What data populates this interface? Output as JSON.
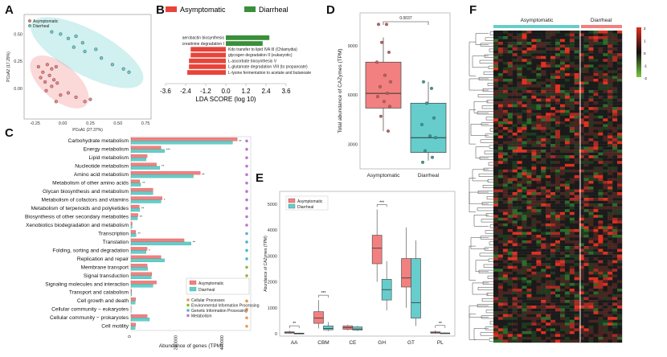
{
  "panels": {
    "A": {
      "label": "A",
      "xlabel": "PCoA1 (27.37%)",
      "ylabel": "PCoA2 (17.29%)",
      "xticks": [
        "-0.25",
        "0.00",
        "0.25",
        "0.50",
        "0.75"
      ],
      "yticks": [
        "0.50",
        "0.25",
        "0.00"
      ],
      "legend": [
        "Asymptomatic",
        "Diarrheal"
      ]
    },
    "B": {
      "label": "B",
      "legend": [
        "Asymptomatic",
        "Diarrheal"
      ],
      "xlabel": "LDA SCORE (log 10)",
      "xticks": [
        "-3.6",
        "-2.4",
        "-1.2",
        "0.0",
        "1.2",
        "2.4",
        "3.6"
      ]
    },
    "C": {
      "label": "C",
      "xlabel": "Abundance of genes (TPM)",
      "xticks": [
        "0",
        "200000",
        "400000"
      ],
      "legend": [
        "Asymptomatic",
        "Diarrheal"
      ],
      "class_legend": [
        "Cellular Processes",
        "Environmental Information Processing",
        "Genetic Information Processing",
        "Metabolism"
      ]
    },
    "D": {
      "label": "D",
      "ylabel": "Total abundance of CAZymes (TPM)",
      "yticks": [
        "9000",
        "6000",
        "3000"
      ],
      "categories": [
        "Asymptomatic",
        "Diarrheal"
      ],
      "pvalue": "0.0037"
    },
    "E": {
      "label": "E",
      "ylabel": "Abundance of CAZymes (TPM)",
      "yticks": [
        "0",
        "1000",
        "2000",
        "3000",
        "4000",
        "5000"
      ],
      "legend": [
        "Asymptomatic",
        "Diarrheal"
      ],
      "categories": [
        "AA",
        "CBM",
        "CE",
        "GH",
        "GT",
        "PL"
      ],
      "sig": [
        "**",
        "***",
        "",
        "***",
        "",
        "**"
      ]
    },
    "F": {
      "label": "F",
      "groups": [
        "Asymptomatic",
        "Diarrheal"
      ],
      "scale": [
        "2",
        "1",
        "0",
        "-1",
        "-2"
      ]
    }
  },
  "colors": {
    "asym": "#f28080",
    "diar": "#66cdcc",
    "asym_dark": "#e8443a",
    "diar_dark": "#3a8f3a"
  },
  "chart_data": [
    {
      "type": "scatter",
      "xlabel": "PCoA1 (27.37%)",
      "ylabel": "PCoA2 (17.29%)",
      "xlim": [
        -0.35,
        0.8
      ],
      "ylim": [
        -0.28,
        0.68
      ],
      "series": [
        {
          "name": "Asymptomatic",
          "points": [
            [
              -0.22,
              0.2
            ],
            [
              -0.18,
              0.15
            ],
            [
              -0.14,
              0.22
            ],
            [
              -0.1,
              0.18
            ],
            [
              -0.06,
              0.2
            ],
            [
              -0.12,
              0.12
            ],
            [
              -0.08,
              0.08
            ],
            [
              -0.16,
              0.06
            ],
            [
              -0.2,
              0.1
            ],
            [
              -0.1,
              0.02
            ],
            [
              -0.05,
              0.05
            ],
            [
              -0.15,
              -0.02
            ],
            [
              -0.02,
              -0.06
            ],
            [
              0.05,
              -0.04
            ],
            [
              0.12,
              -0.08
            ],
            [
              0.2,
              -0.12
            ],
            [
              0.25,
              -0.1
            ],
            [
              -0.06,
              -0.12
            ]
          ]
        },
        {
          "name": "Diarrheal",
          "points": [
            [
              -0.1,
              0.52
            ],
            [
              -0.02,
              0.5
            ],
            [
              0.05,
              0.46
            ],
            [
              0.12,
              0.48
            ],
            [
              0.18,
              0.42
            ],
            [
              0.1,
              0.38
            ],
            [
              0.2,
              0.34
            ],
            [
              0.3,
              0.36
            ],
            [
              0.35,
              0.28
            ],
            [
              0.45,
              0.22
            ],
            [
              0.55,
              0.18
            ],
            [
              0.6,
              0.15
            ]
          ]
        }
      ]
    },
    {
      "type": "bar",
      "title": "",
      "xlabel": "LDA SCORE (log 10)",
      "categories": [
        "aerobactin biosynthesis",
        "creatinine degradation I",
        "Kdo transfer to lipid IVA III (Chlamydia)",
        "glycogen degradation II (eukaryotic)",
        "L-ascorbate biosynthesis V",
        "L-glutamate degradation VIII (to propanoate)",
        "L-lysine fermentation to acetate and butanoate"
      ],
      "values": [
        2.6,
        2.2,
        -2.1,
        -2.1,
        -2.2,
        -2.2,
        -2.3
      ],
      "groups": [
        "Diarrheal",
        "Diarrheal",
        "Asymptomatic",
        "Asymptomatic",
        "Asymptomatic",
        "Asymptomatic",
        "Asymptomatic"
      ],
      "xlim": [
        -3.6,
        3.6
      ]
    },
    {
      "type": "bar",
      "xlabel": "Abundance of genes (TPM)",
      "categories": [
        "Carbohydrate metabolism",
        "Energy metabolism",
        "Lipid metabolism",
        "Nucleotide metabolism",
        "Amino acid metabolism",
        "Metabolism of other amino acids",
        "Glycan biosynthesis and metabolism",
        "Metabolism of cofactors and vitamins",
        "Metabolism of terpenoids and polyketides",
        "Biosynthesis of other secondary metabolites",
        "Xenobiotics biodegradation and metabolism",
        "Transcription",
        "Translation",
        "Folding, sorting and degradation",
        "Replication and repair",
        "Membrane transport",
        "Signal transduction",
        "Signaling molecules and interaction",
        "Transport and catabolism",
        "Cell growth and death",
        "Cellular community − eukaryotes",
        "Cellular community − prokaryotes",
        "Cell motility"
      ],
      "series": [
        {
          "name": "Asymptomatic",
          "values": [
            460000,
            130000,
            70000,
            110000,
            300000,
            38000,
            95000,
            135000,
            36000,
            30000,
            5000,
            20000,
            230000,
            70000,
            130000,
            70000,
            90000,
            110000,
            3000,
            20000,
            1000,
            70000,
            20000
          ]
        },
        {
          "name": "Diarrheal",
          "values": [
            440000,
            145000,
            65000,
            125000,
            270000,
            42000,
            95000,
            130000,
            38000,
            28000,
            4000,
            22000,
            260000,
            65000,
            145000,
            72000,
            88000,
            95000,
            2500,
            18000,
            800,
            80000,
            18000
          ]
        }
      ],
      "significance": [
        "**",
        "***",
        "",
        "**",
        "**",
        "**",
        "",
        "*",
        "**",
        "**",
        "",
        "**",
        "**",
        "*",
        "",
        "",
        "",
        "",
        "",
        "",
        "",
        "",
        ""
      ],
      "class": [
        "Metabolism",
        "Metabolism",
        "Metabolism",
        "Metabolism",
        "Metabolism",
        "Metabolism",
        "Metabolism",
        "Metabolism",
        "Metabolism",
        "Metabolism",
        "Metabolism",
        "Genetic Information Processing",
        "Genetic Information Processing",
        "Genetic Information Processing",
        "Genetic Information Processing",
        "Environmental Information Processing",
        "Environmental Information Processing",
        "Environmental Information Processing",
        "Cellular Processes",
        "Cellular Processes",
        "Cellular Processes",
        "Cellular Processes",
        "Cellular Processes"
      ]
    },
    {
      "type": "box",
      "ylabel": "Total abundance of CAZymes (TPM)",
      "categories": [
        "Asymptomatic",
        "Diarrheal"
      ],
      "ylim": [
        1500,
        11000
      ],
      "boxes": [
        {
          "name": "Asymptomatic",
          "q1": 5200,
          "median": 6100,
          "q3": 8000,
          "min": 3800,
          "max": 9500
        },
        {
          "name": "Diarrheal",
          "q1": 2500,
          "median": 3400,
          "q3": 5500,
          "min": 2000,
          "max": 6800
        }
      ],
      "points": {
        "Asymptomatic": [
          10300,
          10300,
          9200,
          8600,
          8000,
          7200,
          6800,
          6500,
          6100,
          5900,
          5600,
          5300,
          4700,
          3800
        ],
        "Diarrheal": [
          6800,
          6400,
          5500,
          4600,
          4200,
          3500,
          3400,
          2600,
          2200,
          1900
        ]
      },
      "annotation": "0.0037"
    },
    {
      "type": "box",
      "ylabel": "Abundance of CAZymes (TPM)",
      "categories": [
        "AA",
        "CBM",
        "CE",
        "GH",
        "GT",
        "PL"
      ],
      "ylim": [
        0,
        5400
      ],
      "series": [
        {
          "name": "Asymptomatic",
          "boxes": [
            {
              "q1": 20,
              "median": 40,
              "q3": 70,
              "min": 0,
              "max": 120
            },
            {
              "q1": 400,
              "median": 600,
              "q3": 850,
              "min": 200,
              "max": 1300
            },
            {
              "q1": 170,
              "median": 230,
              "q3": 300,
              "min": 120,
              "max": 350
            },
            {
              "q1": 2700,
              "median": 3300,
              "q3": 3800,
              "min": 2000,
              "max": 4800
            },
            {
              "q1": 1800,
              "median": 2150,
              "q3": 2900,
              "min": 1000,
              "max": 4100
            },
            {
              "q1": 20,
              "median": 40,
              "q3": 70,
              "min": 0,
              "max": 130
            }
          ]
        },
        {
          "name": "Diarrheal",
          "boxes": [
            {
              "q1": 5,
              "median": 10,
              "q3": 20,
              "min": 0,
              "max": 40
            },
            {
              "q1": 150,
              "median": 200,
              "q3": 300,
              "min": 100,
              "max": 450
            },
            {
              "q1": 140,
              "median": 180,
              "q3": 260,
              "min": 100,
              "max": 300
            },
            {
              "q1": 1300,
              "median": 1700,
              "q3": 2100,
              "min": 900,
              "max": 2800
            },
            {
              "q1": 600,
              "median": 1200,
              "q3": 2900,
              "min": 300,
              "max": 3600
            },
            {
              "q1": 5,
              "median": 15,
              "q3": 30,
              "min": 0,
              "max": 50
            }
          ]
        }
      ]
    },
    {
      "type": "heatmap",
      "groups": [
        "Asymptomatic",
        "Diarrheal"
      ],
      "scale": [
        -2,
        2
      ]
    }
  ]
}
